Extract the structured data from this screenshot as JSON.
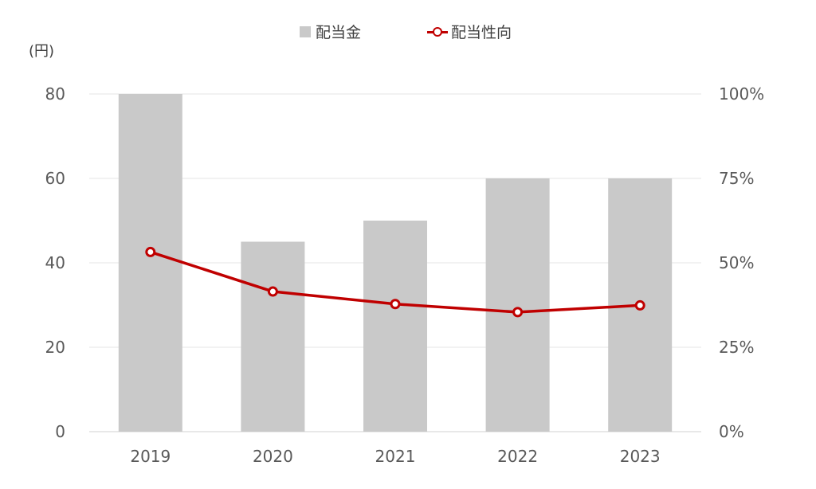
{
  "chart_data": {
    "type": "bar",
    "categories": [
      "2019",
      "2020",
      "2021",
      "2022",
      "2023"
    ],
    "series": [
      {
        "name": "配当金",
        "type": "bar",
        "axis": "left",
        "values": [
          80,
          45,
          50,
          60,
          60
        ],
        "color": "#c9c9c9"
      },
      {
        "name": "配当性向",
        "type": "line",
        "axis": "right",
        "values": [
          53.2,
          41.5,
          37.8,
          35.4,
          37.4
        ],
        "color": "#c00000"
      }
    ],
    "y_left": {
      "unit": "(円)",
      "ylim": [
        0,
        80
      ],
      "ticks": [
        "0",
        "20",
        "40",
        "60",
        "80"
      ]
    },
    "y_right": {
      "ylim": [
        0,
        100
      ],
      "ticks": [
        "0%",
        "25%",
        "50%",
        "75%",
        "100%"
      ]
    },
    "grid": true,
    "legend": {
      "position": "top-center",
      "entries": [
        "配当金",
        "配当性向"
      ]
    }
  }
}
